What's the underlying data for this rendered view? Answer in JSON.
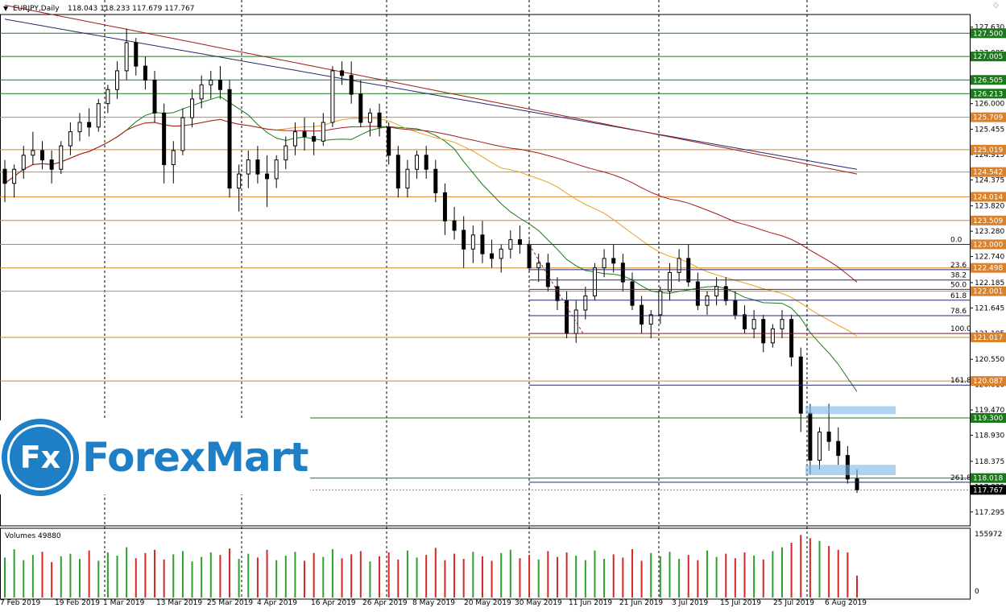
{
  "header": {
    "symbol": "EURJPY,Daily",
    "ohlc": "118.043 118.233 117.679 117.767"
  },
  "volume_label": "Volumes 49880",
  "volume_axis": {
    "top": "155972",
    "bottom": "0"
  },
  "brand": {
    "badge": "Fx",
    "name": "ForexMart",
    "color": "#1f7fc6"
  },
  "colors": {
    "background": "#ffffff",
    "green_level": "#1a7a1a",
    "orange_level": "#d9822b",
    "navy_level": "#1f2a6b",
    "purple_level": "#6b1f4a",
    "candle": "#000000",
    "volume_up": "#2ca02c",
    "volume_down": "#d62728",
    "ma_navy": "#28286e",
    "ma_red": "#a01c1c",
    "ma_orange": "#e8a020",
    "ma_green": "#1a7a1a",
    "highlight": "#7ab8e8"
  },
  "chart_data": {
    "type": "candlestick",
    "title": "EURJPY,Daily",
    "ylim": [
      117.0,
      127.9
    ],
    "price_ticks": [
      "127.630",
      "127.085",
      "126.540",
      "126.000",
      "125.455",
      "124.915",
      "124.375",
      "123.820",
      "123.280",
      "122.740",
      "122.185",
      "121.645",
      "121.105",
      "120.550",
      "120.010",
      "119.470",
      "118.930",
      "118.375",
      "117.835",
      "117.295"
    ],
    "date_labels": [
      "7 Feb 2019",
      "19 Feb 2019",
      "1 Mar 2019",
      "13 Mar 2019",
      "25 Mar 2019",
      "4 Apr 2019",
      "16 Apr 2019",
      "26 Apr 2019",
      "8 May 2019",
      "20 May 2019",
      "30 May 2019",
      "11 Jun 2019",
      "21 Jun 2019",
      "3 Jul 2019",
      "15 Jul 2019",
      "25 Jul 2019",
      "6 Aug 2019"
    ],
    "levels": [
      {
        "price": 127.5,
        "label": "127.500",
        "color": "green"
      },
      {
        "price": 127.005,
        "label": "127.005",
        "color": "green"
      },
      {
        "price": 126.505,
        "label": "126.505",
        "color": "green"
      },
      {
        "price": 126.213,
        "label": "126.213",
        "color": "green"
      },
      {
        "price": 125.709,
        "label": "125.709",
        "color": "orange"
      },
      {
        "price": 125.019,
        "label": "125.019",
        "color": "orange"
      },
      {
        "price": 124.542,
        "label": "124.542",
        "color": "orange"
      },
      {
        "price": 124.014,
        "label": "124.014",
        "color": "orange"
      },
      {
        "price": 123.509,
        "label": "123.509",
        "color": "orange"
      },
      {
        "price": 123.0,
        "label": "123.000",
        "color": "orange"
      },
      {
        "price": 122.498,
        "label": "122.498",
        "color": "orange"
      },
      {
        "price": 122.001,
        "label": "122.001",
        "color": "orange"
      },
      {
        "price": 121.017,
        "label": "121.017",
        "color": "orange"
      },
      {
        "price": 120.087,
        "label": "120.087",
        "color": "orange"
      },
      {
        "price": 119.3,
        "label": "119.300",
        "color": "green"
      },
      {
        "price": 118.018,
        "label": "118.018",
        "color": "green"
      }
    ],
    "current_price": {
      "price": 117.767,
      "label": "117.767"
    },
    "fibonacci": [
      {
        "label": "0.0",
        "price": 123.0
      },
      {
        "label": "23.6",
        "price": 122.46
      },
      {
        "label": "38.2",
        "price": 122.24
      },
      {
        "label": "50.0",
        "price": 122.04
      },
      {
        "label": "61.8",
        "price": 121.81
      },
      {
        "label": "78.6",
        "price": 121.48
      },
      {
        "label": "100.0",
        "price": 121.1
      },
      {
        "label": "161.8",
        "price": 120.0
      },
      {
        "label": "261.8",
        "price": 117.93
      }
    ],
    "candles": [
      [
        124.6,
        124.8,
        123.9,
        124.3
      ],
      [
        124.3,
        124.7,
        124.0,
        124.6
      ],
      [
        124.6,
        125.1,
        124.4,
        124.9
      ],
      [
        124.9,
        125.4,
        124.7,
        125.0
      ],
      [
        125.0,
        125.2,
        124.6,
        124.8
      ],
      [
        124.8,
        125.0,
        124.3,
        124.6
      ],
      [
        124.6,
        125.2,
        124.5,
        125.1
      ],
      [
        125.1,
        125.6,
        124.9,
        125.4
      ],
      [
        125.4,
        125.8,
        125.2,
        125.6
      ],
      [
        125.6,
        125.9,
        125.3,
        125.5
      ],
      [
        125.5,
        126.1,
        125.4,
        126.0
      ],
      [
        126.0,
        126.4,
        125.8,
        126.3
      ],
      [
        126.3,
        126.9,
        126.1,
        126.7
      ],
      [
        126.7,
        127.6,
        126.5,
        127.3
      ],
      [
        127.3,
        127.4,
        126.6,
        126.8
      ],
      [
        126.8,
        127.0,
        126.3,
        126.5
      ],
      [
        126.5,
        126.7,
        125.6,
        125.8
      ],
      [
        125.8,
        126.0,
        124.3,
        124.7
      ],
      [
        124.7,
        125.2,
        124.3,
        125.0
      ],
      [
        125.0,
        125.9,
        124.9,
        125.7
      ],
      [
        125.7,
        126.3,
        125.5,
        126.1
      ],
      [
        126.1,
        126.6,
        125.9,
        126.4
      ],
      [
        126.4,
        126.7,
        126.1,
        126.5
      ],
      [
        126.5,
        126.8,
        126.1,
        126.3
      ],
      [
        126.3,
        126.5,
        124.0,
        124.2
      ],
      [
        124.2,
        124.7,
        123.7,
        124.5
      ],
      [
        124.5,
        125.0,
        124.2,
        124.8
      ],
      [
        124.8,
        125.1,
        124.3,
        124.5
      ],
      [
        124.5,
        124.9,
        123.8,
        124.4
      ],
      [
        124.4,
        124.9,
        124.2,
        124.8
      ],
      [
        124.8,
        125.3,
        124.6,
        125.1
      ],
      [
        125.1,
        125.6,
        124.9,
        125.4
      ],
      [
        125.4,
        125.7,
        125.0,
        125.3
      ],
      [
        125.3,
        125.6,
        124.9,
        125.2
      ],
      [
        125.2,
        125.8,
        125.1,
        125.6
      ],
      [
        125.6,
        126.8,
        125.5,
        126.7
      ],
      [
        126.7,
        126.9,
        126.4,
        126.6
      ],
      [
        126.6,
        126.9,
        126.0,
        126.2
      ],
      [
        126.2,
        126.5,
        125.5,
        125.6
      ],
      [
        125.6,
        125.9,
        125.3,
        125.8
      ],
      [
        125.8,
        126.0,
        125.3,
        125.5
      ],
      [
        125.5,
        125.6,
        124.7,
        124.9
      ],
      [
        124.9,
        125.1,
        124.0,
        124.2
      ],
      [
        124.2,
        124.8,
        124.0,
        124.6
      ],
      [
        124.6,
        125.0,
        124.4,
        124.9
      ],
      [
        124.9,
        125.1,
        124.4,
        124.6
      ],
      [
        124.6,
        124.8,
        123.9,
        124.1
      ],
      [
        124.1,
        124.3,
        123.2,
        123.5
      ],
      [
        123.5,
        123.8,
        123.1,
        123.3
      ],
      [
        123.3,
        123.6,
        122.5,
        122.9
      ],
      [
        122.9,
        123.4,
        122.6,
        123.2
      ],
      [
        123.2,
        123.5,
        122.6,
        122.8
      ],
      [
        122.8,
        123.1,
        122.5,
        122.7
      ],
      [
        122.7,
        123.0,
        122.4,
        122.9
      ],
      [
        122.9,
        123.3,
        122.7,
        123.1
      ],
      [
        123.1,
        123.4,
        122.8,
        123.0
      ],
      [
        123.0,
        123.1,
        122.4,
        122.5
      ],
      [
        122.5,
        122.8,
        122.2,
        122.6
      ],
      [
        122.6,
        122.8,
        122.0,
        122.1
      ],
      [
        122.1,
        122.3,
        121.6,
        121.8
      ],
      [
        121.8,
        122.0,
        121.0,
        121.1
      ],
      [
        121.1,
        121.8,
        120.9,
        121.6
      ],
      [
        121.6,
        122.1,
        121.4,
        121.9
      ],
      [
        121.9,
        122.6,
        121.8,
        122.5
      ],
      [
        122.5,
        122.9,
        122.3,
        122.7
      ],
      [
        122.7,
        123.0,
        122.4,
        122.6
      ],
      [
        122.6,
        122.8,
        122.0,
        122.2
      ],
      [
        122.2,
        122.4,
        121.6,
        121.7
      ],
      [
        121.7,
        121.9,
        121.1,
        121.3
      ],
      [
        121.3,
        121.6,
        121.0,
        121.5
      ],
      [
        121.5,
        122.1,
        121.3,
        122.0
      ],
      [
        122.0,
        122.6,
        121.8,
        122.4
      ],
      [
        122.4,
        122.9,
        122.2,
        122.7
      ],
      [
        122.7,
        123.0,
        122.1,
        122.2
      ],
      [
        122.2,
        122.4,
        121.6,
        121.7
      ],
      [
        121.7,
        122.0,
        121.5,
        121.9
      ],
      [
        121.9,
        122.3,
        121.7,
        122.1
      ],
      [
        122.1,
        122.3,
        121.7,
        121.8
      ],
      [
        121.8,
        122.0,
        121.4,
        121.5
      ],
      [
        121.5,
        121.7,
        121.1,
        121.2
      ],
      [
        121.2,
        121.6,
        121.0,
        121.4
      ],
      [
        121.4,
        121.5,
        120.7,
        120.9
      ],
      [
        120.9,
        121.3,
        120.8,
        121.2
      ],
      [
        121.2,
        121.6,
        121.0,
        121.4
      ],
      [
        121.4,
        121.5,
        120.4,
        120.6
      ],
      [
        120.6,
        120.8,
        119.0,
        119.4
      ],
      [
        119.4,
        119.6,
        118.1,
        118.4
      ],
      [
        118.4,
        119.1,
        118.2,
        119.0
      ],
      [
        119.0,
        119.6,
        118.6,
        118.8
      ],
      [
        118.8,
        119.1,
        118.3,
        118.5
      ],
      [
        118.5,
        118.7,
        117.9,
        118.0
      ],
      [
        118.0,
        118.2,
        117.7,
        117.77
      ]
    ],
    "volumes": [
      0.62,
      0.75,
      0.58,
      0.66,
      0.71,
      0.55,
      0.64,
      0.68,
      0.6,
      0.73,
      0.57,
      0.7,
      0.65,
      0.78,
      0.61,
      0.69,
      0.74,
      0.59,
      0.67,
      0.72,
      0.56,
      0.63,
      0.7,
      0.66,
      0.76,
      0.6,
      0.68,
      0.62,
      0.74,
      0.58,
      0.65,
      0.71,
      0.57,
      0.69,
      0.63,
      0.75,
      0.61,
      0.67,
      0.72,
      0.56,
      0.64,
      0.7,
      0.59,
      0.73,
      0.62,
      0.66,
      0.77,
      0.58,
      0.68,
      0.6,
      0.71,
      0.64,
      0.57,
      0.69,
      0.74,
      0.61,
      0.66,
      0.59,
      0.72,
      0.63,
      0.7,
      0.65,
      0.58,
      0.73,
      0.6,
      0.67,
      0.62,
      0.75,
      0.57,
      0.69,
      0.64,
      0.71,
      0.6,
      0.66,
      0.58,
      0.73,
      0.63,
      0.68,
      0.61,
      0.7,
      0.65,
      0.59,
      0.72,
      0.78,
      0.85,
      0.97,
      0.92,
      0.88,
      0.8,
      0.74,
      0.7,
      0.34
    ]
  }
}
